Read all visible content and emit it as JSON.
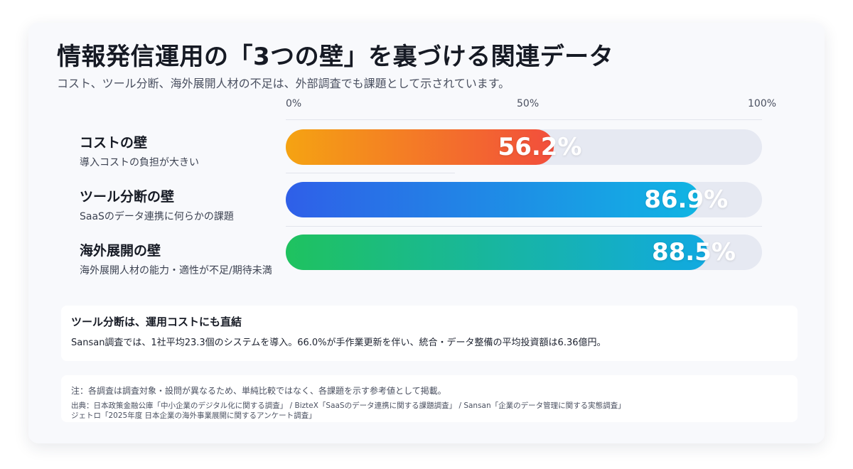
{
  "header": {
    "title": "情報発信運用の「3つの壁」を裏づける関連データ",
    "subtitle": "コスト、ツール分断、海外展開人材の不足は、外部調査でも課題として示されています。"
  },
  "chart_data": {
    "type": "bar",
    "orientation": "horizontal",
    "title": "",
    "xlim": [
      0,
      100
    ],
    "ticks": [
      "0%",
      "50%",
      "100%"
    ],
    "categories": [
      {
        "label": "コストの壁",
        "description": "導入コストの負担が大きい",
        "value": 56.2,
        "value_label": "56.2%",
        "gradient": [
          "#f5a312",
          "#f24e3c"
        ]
      },
      {
        "label": "ツール分断の壁",
        "description": "SaaSのデータ連携に何らかの課題",
        "value": 86.9,
        "value_label": "86.9%",
        "gradient": [
          "#2f5fe8",
          "#10b5e3"
        ]
      },
      {
        "label": "海外展開の壁",
        "description": "海外展開人材の能力・適性が不足/期待未満",
        "value": 88.5,
        "value_label": "88.5%",
        "gradient": [
          "#1fc25f",
          "#11a9e1"
        ]
      }
    ],
    "track_color": "#e6e9f2",
    "grid": false
  },
  "note": {
    "title": "ツール分断は、運用コストにも直結",
    "body": "Sansan調査では、1社平均23.3個のシステムを導入。66.0%が手作業更新を伴い、統合・データ整備の平均投資額は6.36億円。"
  },
  "sources": {
    "note": "注：各調査は調査対象・設問が異なるため、単純比較ではなく、各課題を示す参考値として掲載。",
    "line1": "出典：日本政策金融公庫「中小企業のデジタル化に関する調査」 / BizteX「SaaSのデータ連携に関する課題調査」 / Sansan「企業のデータ管理に関する実態調査」",
    "line2": "ジェトロ「2025年度 日本企業の海外事業展開に関するアンケート調査」"
  }
}
